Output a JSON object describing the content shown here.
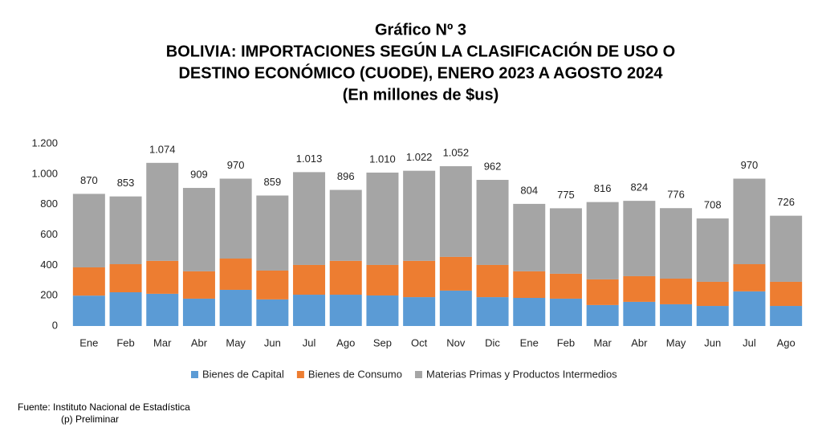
{
  "chart_data": {
    "type": "stacked_bar",
    "title": [
      "Gráfico Nº 3",
      "BOLIVIA: IMPORTACIONES SEGÚN LA CLASIFICACIÓN DE USO O",
      "DESTINO ECONÓMICO (CUODE), ENERO 2023 A AGOSTO 2024",
      "(En millones de $us)"
    ],
    "categories": [
      "Ene",
      "Feb",
      "Mar",
      "Abr",
      "May",
      "Jun",
      "Jul",
      "Ago",
      "Sep",
      "Oct",
      "Nov",
      "Dic",
      "Ene",
      "Feb",
      "Mar",
      "Abr",
      "May",
      "Jun",
      "Jul",
      "Ago"
    ],
    "series": [
      {
        "name": "Bienes de Capital",
        "color": "#5b9bd5",
        "values": [
          200,
          222,
          212,
          180,
          238,
          175,
          206,
          206,
          201,
          190,
          233,
          190,
          185,
          180,
          138,
          159,
          143,
          132,
          228,
          132
        ]
      },
      {
        "name": "Bienes de Consumo",
        "color": "#ed7d31",
        "values": [
          186,
          185,
          217,
          180,
          206,
          190,
          196,
          223,
          201,
          239,
          222,
          212,
          175,
          164,
          169,
          169,
          169,
          159,
          179,
          159
        ]
      },
      {
        "name": "Materias Primas y Productos Intermedios",
        "color": "#a5a5a5",
        "values": [
          484,
          446,
          645,
          549,
          526,
          494,
          611,
          467,
          608,
          593,
          597,
          560,
          444,
          431,
          509,
          496,
          464,
          417,
          563,
          435
        ]
      }
    ],
    "totals": {
      "values": [
        870,
        853,
        1074,
        909,
        970,
        859,
        1013,
        896,
        1010,
        1022,
        1052,
        962,
        804,
        775,
        816,
        824,
        776,
        708,
        970,
        726
      ],
      "value_labels": [
        "870",
        "853",
        "1.074",
        "909",
        "970",
        "859",
        "1.013",
        "896",
        "1.010",
        "1.022",
        "1.052",
        "962",
        "804",
        "775",
        "816",
        "824",
        "776",
        "708",
        "970",
        "726"
      ]
    },
    "ylim": [
      0,
      1200
    ],
    "yticks": [
      0,
      200,
      400,
      600,
      800,
      {
        "value": 1000,
        "label": "1.000"
      },
      {
        "value": 1200,
        "label": "1.200"
      }
    ],
    "grid": false,
    "legend": "bottom",
    "source": [
      "Fuente: Instituto Nacional de Estadística",
      "(p) Preliminar"
    ]
  }
}
